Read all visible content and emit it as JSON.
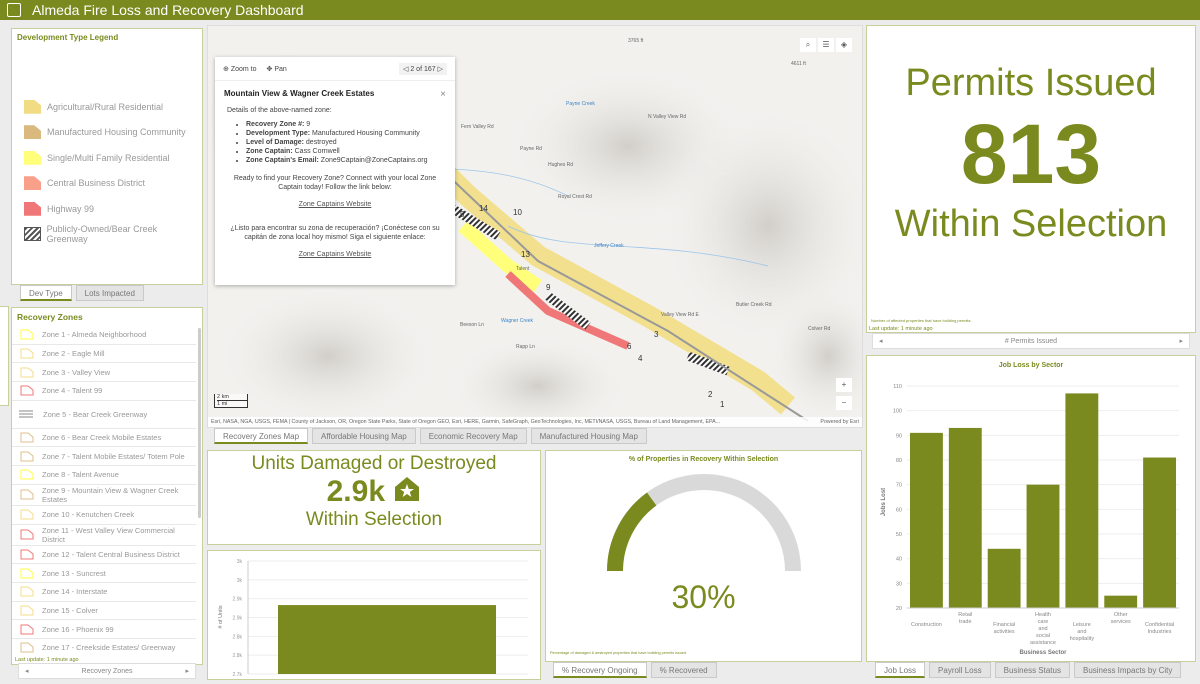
{
  "header": {
    "title": "Almeda Fire Loss and Recovery Dashboard",
    "icon": "dashboard-logo-icon"
  },
  "colors": {
    "accent": "#7a8a1e",
    "gauge_track": "#d9d9d9"
  },
  "legend": {
    "title": "Development Type Legend",
    "items": [
      {
        "label": "Agricultural/Rural Residential",
        "color": "#f1dc84"
      },
      {
        "label": "Manufactured Housing Community",
        "color": "#d9b97d"
      },
      {
        "label": "Single/Multi Family Residential",
        "color": "#ffff7a"
      },
      {
        "label": "Central Business District",
        "color": "#f9a08a"
      },
      {
        "label": "Highway 99",
        "color": "#f07777"
      },
      {
        "label": "Publicly-Owned/Bear Creek Greenway",
        "color": "hatch"
      }
    ],
    "tabs": [
      "Dev Type",
      "Lots Impacted"
    ]
  },
  "zones": {
    "title": "Recovery Zones",
    "items": [
      {
        "label": "Zone 1 - Almeda Neighborhood",
        "color": "#ffff40"
      },
      {
        "label": "Zone 2 - Eagle Mill",
        "color": "#f3dc8a"
      },
      {
        "label": "Zone 3 - Valley View",
        "color": "#f3dc8a"
      },
      {
        "label": "Zone 4 - Talent 99",
        "color": "#f07a7a"
      },
      {
        "label": "Zone 5 - Bear Creek Greenway",
        "color": "lines"
      },
      {
        "label": "Zone 6 - Bear Creek Mobile Estates",
        "color": "#dcbf8c"
      },
      {
        "label": "Zone 7 - Talent Mobile Estates/ Totem Pole",
        "color": "#dcbf8c"
      },
      {
        "label": "Zone 8 - Talent Avenue",
        "color": "#ffff40"
      },
      {
        "label": "Zone 9 - Mountain View & Wagner Creek Estates",
        "color": "#dcbf8c"
      },
      {
        "label": "Zone 10 - Kenutchen Creek",
        "color": "#f3dc8a"
      },
      {
        "label": "Zone 11 - West Valley View Commercial District",
        "color": "#f07a7a"
      },
      {
        "label": "Zone 12 - Talent Central Business District",
        "color": "#f07a7a"
      },
      {
        "label": "Zone 13 - Suncrest",
        "color": "#ffff40"
      },
      {
        "label": "Zone 14 - Interstate",
        "color": "#f3dc8a"
      },
      {
        "label": "Zone 15 - Colver",
        "color": "#f3dc8a"
      },
      {
        "label": "Zone 16 - Phoenix 99",
        "color": "#f07a7a"
      },
      {
        "label": "Zone 17 - Creekside Estates/ Greenway",
        "color": "#dcbf8c"
      }
    ],
    "last_update": "Last update: 1 minute ago",
    "nav_label": "Recovery Zones"
  },
  "map": {
    "popup": {
      "zoom_to": "Zoom to",
      "pan": "Pan",
      "pager": "2 of 167",
      "title": "Mountain View & Wagner Creek Estates",
      "intro": "Details of the above-named zone:",
      "fields": [
        {
          "k": "Recovery Zone #:",
          "v": " 9"
        },
        {
          "k": "Development Type:",
          "v": " Manufactured Housing Community"
        },
        {
          "k": "Level of Damage:",
          "v": " destroyed"
        },
        {
          "k": "Zone Captain:",
          "v": " Cass Cornwell"
        },
        {
          "k": "Zone Captain's Email:",
          "v": " Zone9Captain@ZoneCaptains.org"
        }
      ],
      "cta_en": "Ready to find your Recovery Zone? Connect with your local Zone Captain today! Follow the link below:",
      "link": "Zone Captains Website",
      "cta_es": "¿Listo para encontrar su zona de recuperación? ¡Conéctese con su capitán de zona local hoy mismo! Siga el siguiente enlace:"
    },
    "labels": [
      "3765 ft",
      "4611 ft",
      "Payne Creek",
      "Fern Valley Rd",
      "Hughes Rd",
      "Payne Rd",
      "Royal Crest Rd",
      "Jeffery Creek",
      "N Valley View Rd",
      "Valley View Rd E",
      "Butler Creek Rd",
      "Rapp Ln",
      "Wagner Creek",
      "Talent",
      "Beeson Ln",
      "Colver Rd"
    ],
    "zone_numbers": [
      "14",
      "10",
      "13",
      "9",
      "3",
      "6",
      "4",
      "2",
      "1",
      "5"
    ],
    "scale": [
      "2 km",
      "1 mi"
    ],
    "attribution": "Esri, NASA, NGA, USGS, FEMA | County of Jackson, OR, Oregon State Parks, State of Oregon GEO, Esri, HERE, Garmin, SafeGraph, GeoTechnologies, Inc, METI/NASA, USGS, Bureau of Land Management, EPA...",
    "powered": "Powered by Esri",
    "tabs": [
      "Recovery Zones Map",
      "Affordable Housing Map",
      "Economic Recovery Map",
      "Manufactured Housing Map"
    ]
  },
  "units": {
    "title": "Units Damaged or Destroyed",
    "value": "2.9k",
    "subtitle": "Within Selection",
    "icon": "house-star-icon"
  },
  "units_chart": {
    "type": "bar",
    "ylabel": "# of Units",
    "yticks": [
      "3k",
      "3k",
      "2.9k",
      "2.9k",
      "2.8k",
      "2.8k",
      "2.7k"
    ],
    "ylim": [
      2700,
      3000
    ],
    "values": [
      2883
    ]
  },
  "gauge": {
    "title": "% of Properties in Recovery Within Selection",
    "value": 30,
    "label": "30%",
    "note": "Percentage of damaged & destroyed properties that have building permits issued",
    "tabs": [
      "% Recovery Ongoing",
      "% Recovered"
    ]
  },
  "permits": {
    "title": "Permits Issued",
    "value": "813",
    "subtitle": "Within Selection",
    "note": "Number of affected properties that have building permits.",
    "last_update": "Last update: 1 minute ago",
    "nav_label": "# Permits Issued"
  },
  "chart_data": {
    "type": "bar",
    "title": "Job Loss by Sector",
    "xlabel": "Business Sector",
    "ylabel": "Jobs Lost",
    "ylim": [
      20,
      110
    ],
    "yticks": [
      20,
      30,
      40,
      50,
      60,
      70,
      80,
      90,
      100,
      110
    ],
    "grid": true,
    "categories": [
      "Construction",
      "Retail trade",
      "Financial activities",
      "Health care and social assistance",
      "Leisure and hospitality",
      "Other services",
      "Confidential Industries"
    ],
    "values": [
      91,
      93,
      44,
      70,
      107,
      25,
      81
    ]
  },
  "job_tabs": [
    "Job Loss",
    "Payroll Loss",
    "Business Status",
    "Business Impacts by City"
  ]
}
